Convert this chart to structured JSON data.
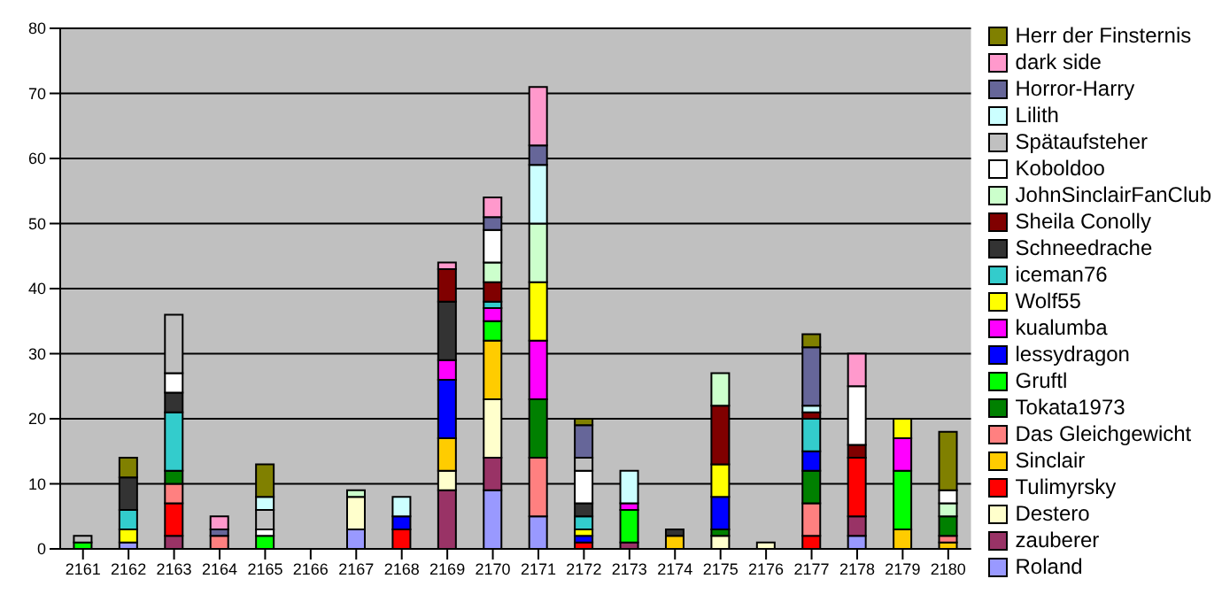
{
  "chart_data": {
    "type": "bar",
    "stacked": true,
    "categories": [
      "2161",
      "2162",
      "2163",
      "2164",
      "2165",
      "2166",
      "2167",
      "2168",
      "2169",
      "2170",
      "2171",
      "2172",
      "2173",
      "2174",
      "2175",
      "2176",
      "2177",
      "2178",
      "2179",
      "2180"
    ],
    "ylim": [
      0,
      80
    ],
    "yticks": [
      0,
      10,
      20,
      30,
      40,
      50,
      60,
      70,
      80
    ],
    "grid": "y",
    "legend": "right",
    "series": [
      {
        "name": "Roland",
        "color": "#9999ff",
        "values": [
          null,
          1,
          null,
          null,
          null,
          null,
          3,
          null,
          null,
          9,
          5,
          null,
          null,
          null,
          null,
          null,
          null,
          2,
          null,
          null
        ]
      },
      {
        "name": "zauberer",
        "color": "#993366",
        "values": [
          null,
          null,
          2,
          null,
          null,
          null,
          null,
          null,
          9,
          5,
          null,
          null,
          1,
          null,
          null,
          null,
          null,
          3,
          null,
          null
        ]
      },
      {
        "name": "Destero",
        "color": "#ffffcc",
        "values": [
          null,
          null,
          null,
          null,
          null,
          null,
          5,
          null,
          3,
          9,
          null,
          null,
          null,
          null,
          2,
          1,
          null,
          null,
          null,
          null
        ]
      },
      {
        "name": "Tulimyrsky",
        "color": "#ff0000",
        "values": [
          null,
          null,
          5,
          null,
          null,
          null,
          null,
          3,
          null,
          null,
          null,
          1,
          null,
          null,
          null,
          null,
          2,
          9,
          null,
          null
        ]
      },
      {
        "name": "Sinclair",
        "color": "#ffcc00",
        "values": [
          null,
          null,
          null,
          null,
          null,
          null,
          null,
          null,
          5,
          9,
          null,
          null,
          null,
          2,
          null,
          null,
          null,
          null,
          3,
          1
        ]
      },
      {
        "name": "Das Gleichgewicht",
        "color": "#ff8080",
        "values": [
          null,
          null,
          3,
          2,
          null,
          null,
          null,
          null,
          null,
          null,
          9,
          null,
          null,
          null,
          null,
          null,
          5,
          null,
          null,
          1
        ]
      },
      {
        "name": "Tokata1973",
        "color": "#008000",
        "values": [
          null,
          null,
          2,
          null,
          null,
          null,
          null,
          null,
          null,
          null,
          9,
          null,
          null,
          null,
          1,
          null,
          5,
          null,
          null,
          3
        ]
      },
      {
        "name": "Gruftl",
        "color": "#00ff00",
        "values": [
          1,
          null,
          null,
          null,
          2,
          null,
          null,
          null,
          null,
          3,
          null,
          null,
          5,
          null,
          null,
          null,
          null,
          null,
          9,
          null
        ]
      },
      {
        "name": "lessydragon",
        "color": "#0000ff",
        "values": [
          null,
          null,
          null,
          null,
          null,
          null,
          null,
          2,
          9,
          null,
          null,
          1,
          null,
          null,
          5,
          null,
          3,
          null,
          null,
          null
        ]
      },
      {
        "name": "kualumba",
        "color": "#ff00ff",
        "values": [
          null,
          null,
          null,
          null,
          null,
          null,
          null,
          null,
          3,
          2,
          9,
          null,
          1,
          null,
          null,
          null,
          null,
          null,
          5,
          null
        ]
      },
      {
        "name": "Wolf55",
        "color": "#ffff00",
        "values": [
          null,
          2,
          null,
          null,
          null,
          null,
          null,
          null,
          null,
          null,
          9,
          1,
          null,
          null,
          5,
          null,
          null,
          null,
          3,
          null
        ]
      },
      {
        "name": "iceman76",
        "color": "#33cccc",
        "values": [
          null,
          3,
          9,
          null,
          null,
          null,
          null,
          null,
          null,
          1,
          null,
          2,
          null,
          null,
          null,
          null,
          5,
          null,
          null,
          null
        ]
      },
      {
        "name": "Schneedrache",
        "color": "#333333",
        "values": [
          null,
          5,
          3,
          null,
          null,
          null,
          null,
          null,
          9,
          null,
          null,
          2,
          null,
          1,
          null,
          null,
          null,
          null,
          null,
          null
        ]
      },
      {
        "name": "Sheila Conolly",
        "color": "#800000",
        "values": [
          null,
          null,
          null,
          null,
          null,
          null,
          null,
          null,
          5,
          3,
          null,
          null,
          null,
          null,
          9,
          null,
          1,
          2,
          null,
          null
        ]
      },
      {
        "name": "JohnSinclairFanClub",
        "color": "#ccffcc",
        "values": [
          null,
          null,
          null,
          null,
          null,
          null,
          1,
          null,
          null,
          3,
          9,
          null,
          null,
          null,
          5,
          null,
          null,
          null,
          null,
          2
        ]
      },
      {
        "name": "Koboldoo",
        "color": "#ffffff",
        "values": [
          null,
          null,
          3,
          null,
          1,
          null,
          null,
          null,
          null,
          5,
          null,
          5,
          null,
          null,
          null,
          null,
          null,
          9,
          null,
          2
        ]
      },
      {
        "name": "Spätaufsteher",
        "color": "#c0c0c0",
        "values": [
          1,
          null,
          9,
          null,
          3,
          null,
          null,
          null,
          null,
          null,
          null,
          2,
          null,
          null,
          null,
          null,
          null,
          null,
          null,
          null
        ]
      },
      {
        "name": "Lilith",
        "color": "#ccffff",
        "values": [
          null,
          null,
          null,
          null,
          2,
          null,
          null,
          3,
          null,
          null,
          9,
          null,
          5,
          null,
          null,
          null,
          1,
          null,
          null,
          null
        ]
      },
      {
        "name": "Horror-Harry",
        "color": "#666699",
        "values": [
          null,
          null,
          null,
          1,
          null,
          null,
          null,
          null,
          null,
          2,
          3,
          5,
          null,
          null,
          null,
          null,
          9,
          null,
          null,
          null
        ]
      },
      {
        "name": "dark side",
        "color": "#ff99cc",
        "values": [
          null,
          null,
          null,
          2,
          null,
          null,
          null,
          null,
          1,
          3,
          9,
          null,
          null,
          null,
          null,
          null,
          null,
          5,
          null,
          null
        ]
      },
      {
        "name": "Herr der Finsternis",
        "color": "#808000",
        "values": [
          null,
          3,
          null,
          null,
          5,
          null,
          null,
          null,
          null,
          null,
          null,
          1,
          null,
          null,
          null,
          null,
          2,
          null,
          null,
          9
        ]
      }
    ]
  }
}
